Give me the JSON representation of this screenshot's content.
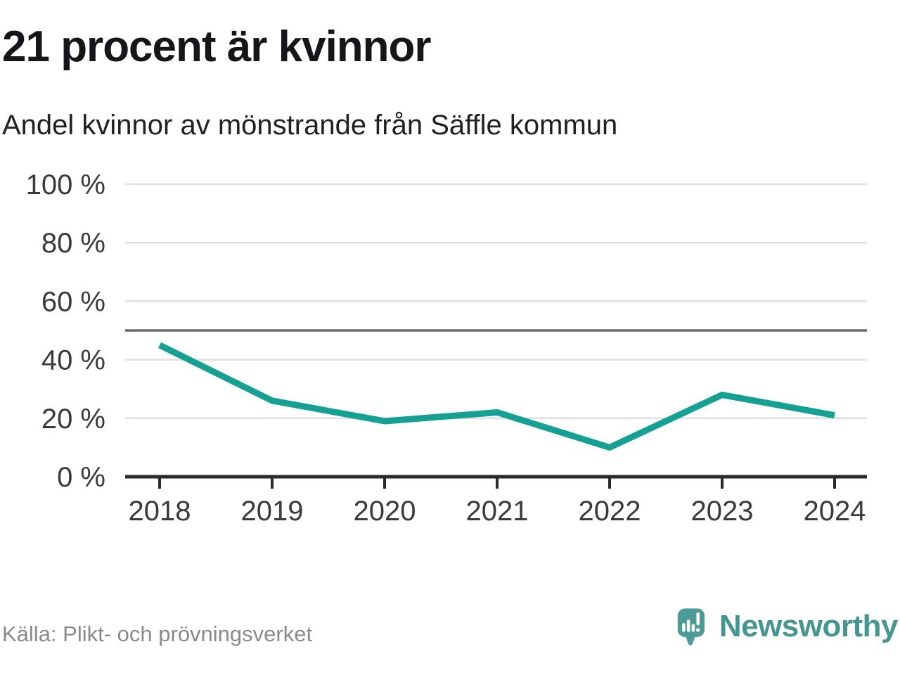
{
  "header": {
    "title": "21 procent är kvinnor",
    "subtitle": "Andel kvinnor av mönstrande från Säffle kommun"
  },
  "footer": {
    "source": "Källa: Plikt- och prövningsverket",
    "brand": "Newsworthy"
  },
  "colors": {
    "line": "#14a092",
    "reference_line": "#6b6b72",
    "gridline": "#e1e1e1",
    "axis": "#2b2b2b",
    "tick_label": "#3a3a3a",
    "title": "#15151a",
    "subtitle": "#212121",
    "source": "#8a8a8a",
    "logo": "#4c9b96"
  },
  "chart_data": {
    "type": "line",
    "title": "21 procent är kvinnor",
    "subtitle": "Andel kvinnor av mönstrande från Säffle kommun",
    "x": [
      "2018",
      "2019",
      "2020",
      "2021",
      "2022",
      "2023",
      "2024"
    ],
    "series": [
      {
        "name": "Andel kvinnor av mönstrande",
        "values": [
          45,
          26,
          19,
          22,
          10,
          28,
          21
        ],
        "color": "#14a092"
      }
    ],
    "unit": "%",
    "ylim": [
      0,
      100
    ],
    "yticks": [
      0,
      20,
      40,
      60,
      80,
      100
    ],
    "ytick_labels": [
      "0 %",
      "20 %",
      "40 %",
      "60 %",
      "80 %",
      "100 %"
    ],
    "reference_line": 50,
    "grid": true,
    "legend": false,
    "source": "Källa: Plikt- och prövningsverket"
  }
}
